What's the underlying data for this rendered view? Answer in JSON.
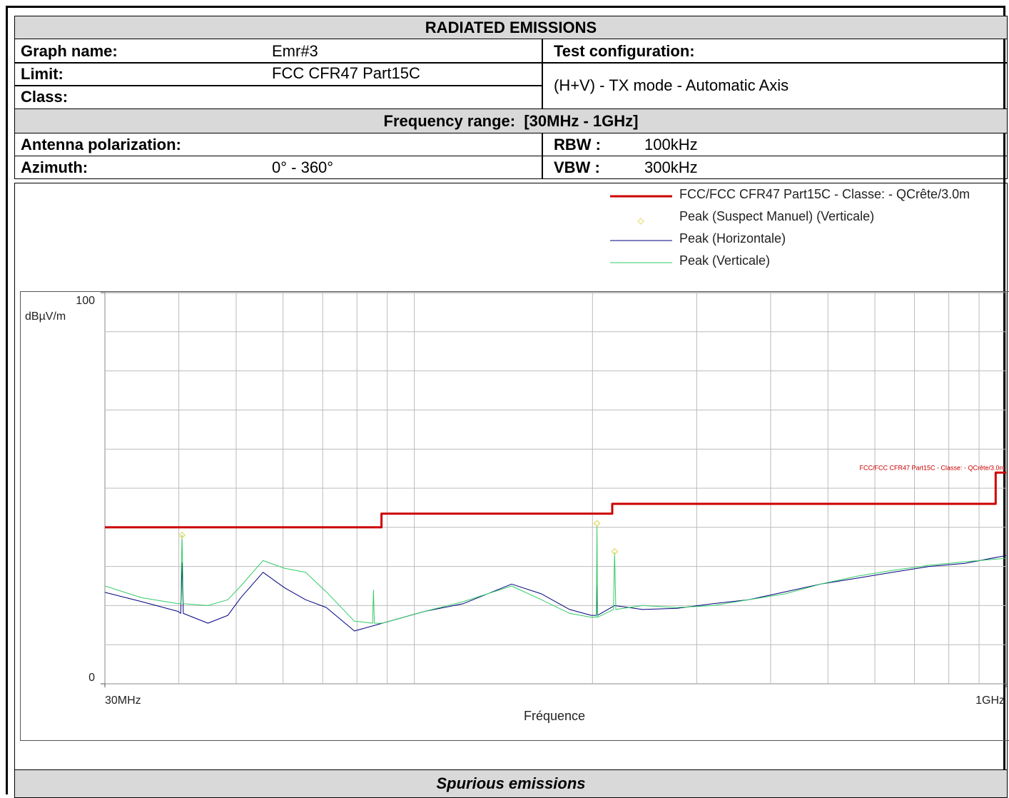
{
  "header": {
    "title": "RADIATED EMISSIONS",
    "graph_name_label": "Graph name:",
    "graph_name": "Emr#3",
    "test_configuration_label": "Test configuration:",
    "limit_label": "Limit:",
    "limit": "FCC CFR47 Part15C",
    "class_label": "Class:",
    "test_configuration": "(H+V) - TX mode - Automatic Axis",
    "frequency_range_label": "Frequency range:",
    "frequency_range": "[30MHz - 1GHz]",
    "antenna_polarization_label": "Antenna polarization:",
    "azimuth_label": "Azimuth:",
    "azimuth": "0° - 360°",
    "rbw_label": "RBW :",
    "rbw": "100kHz",
    "vbw_label": "VBW :",
    "vbw": "300kHz"
  },
  "chart_data": {
    "type": "line",
    "x_label": "Fréquence",
    "y_label": "dBµV/m",
    "x_log": true,
    "grid": true,
    "legend": "top-right",
    "xlim": [
      30,
      1000
    ],
    "xticks": [
      {
        "value": 30,
        "label": "30MHz"
      },
      {
        "value": 1000,
        "label": "1GHz"
      }
    ],
    "x_minor_ticks": [
      40,
      50,
      60,
      70,
      80,
      90,
      100,
      200,
      300,
      400,
      500,
      600,
      700,
      800,
      900
    ],
    "ylim": [
      0,
      100
    ],
    "yticks": [
      0,
      100
    ],
    "y_minor_ticks": [
      10,
      20,
      30,
      40,
      50,
      60,
      70,
      80,
      90
    ],
    "series": [
      {
        "name": "FCC/FCC CFR47 Part15C - Classe: - QCrête/3.0m",
        "color": "#cc0000",
        "style": "line",
        "width": 3,
        "x": [
          30,
          88,
          88,
          216,
          216,
          960,
          960,
          1000
        ],
        "values": [
          40,
          40,
          43.5,
          43.5,
          46,
          46,
          54,
          54
        ]
      },
      {
        "name": "Peak (Suspect Manuel) (Verticale)",
        "color": "#e6e07a",
        "style": "markers",
        "x": [
          40.5,
          203.5,
          218
        ],
        "values": [
          38,
          41,
          33.8
        ]
      },
      {
        "name": "Peak (Horizontale)",
        "color": "#000080",
        "style": "line",
        "width": 1,
        "x": [
          30,
          34.6,
          39.9,
          40.3,
          40.5,
          40.7,
          44.8,
          48.4,
          50.9,
          55.5,
          60.4,
          65.5,
          71,
          79.2,
          88.3,
          104,
          121,
          146,
          164,
          183,
          199,
          203,
          203.5,
          204,
          218,
          243,
          278,
          320,
          367,
          423,
          486,
          560,
          643,
          741,
          852,
          1000
        ],
        "values": [
          23.4,
          21,
          18.5,
          18,
          31,
          18,
          15.5,
          17.5,
          22,
          28.5,
          24.5,
          21.5,
          19.5,
          13.5,
          15.5,
          18.5,
          20.5,
          25.5,
          23,
          19,
          17.5,
          17.5,
          25,
          17.5,
          20,
          19,
          19.3,
          20.5,
          21.5,
          23.5,
          25.5,
          27,
          28.5,
          30,
          30.8,
          32.8
        ]
      },
      {
        "name": "Peak (Verticale)",
        "color": "#33cc66",
        "style": "line",
        "width": 1,
        "x": [
          30,
          34.6,
          39.9,
          40.3,
          40.5,
          40.7,
          44.8,
          48.4,
          50.9,
          55.5,
          60.4,
          65.5,
          71,
          79.2,
          85,
          85.3,
          85.6,
          88.3,
          104,
          121,
          146,
          164,
          183,
          199,
          203,
          203.5,
          204,
          217,
          218,
          219,
          243,
          278,
          320,
          367,
          423,
          486,
          560,
          643,
          741,
          852,
          1000
        ],
        "values": [
          25,
          22,
          20.5,
          20.5,
          38,
          20.5,
          20,
          21.5,
          25,
          31.5,
          29.5,
          28.5,
          23.5,
          16,
          15.5,
          24,
          15.5,
          15.5,
          18.5,
          21,
          25,
          21.5,
          18,
          17,
          17,
          40.5,
          17,
          19,
          33.5,
          19,
          20,
          19.5,
          20,
          21.5,
          23,
          25.5,
          27.5,
          29,
          30.3,
          31.2,
          32.1
        ]
      }
    ]
  },
  "footer": {
    "caption": "Spurious emissions"
  }
}
